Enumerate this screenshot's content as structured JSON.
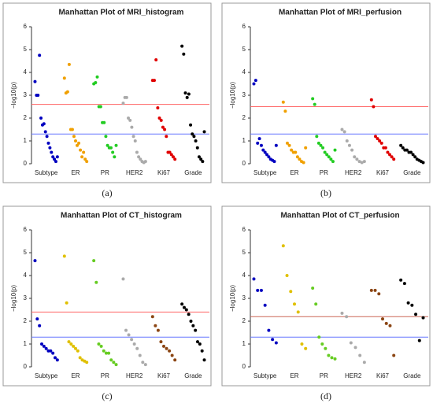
{
  "chart_data": [
    {
      "type": "manhattan",
      "title": "Manhattan Plot of MRI_histogram",
      "ylabel": "−log10(p)",
      "caption": "(a)",
      "ylim": [
        0,
        6
      ],
      "yticks": [
        0,
        1,
        2,
        3,
        4,
        5,
        6
      ],
      "hlines": [
        {
          "value": 2.6,
          "color": "#ff6666"
        },
        {
          "value": 1.3,
          "color": "#6677ff"
        }
      ],
      "groups": [
        {
          "label": "Subtype",
          "color": "#0000c0",
          "values": [
            3.6,
            3.0,
            3.0,
            4.75,
            2.0,
            1.7,
            1.75,
            1.4,
            1.2,
            0.9,
            0.7,
            0.5,
            0.3,
            0.2,
            0.1,
            0.3
          ]
        },
        {
          "label": "ER",
          "color": "#f0a000",
          "values": [
            3.75,
            3.1,
            3.15,
            4.35,
            1.5,
            1.5,
            1.2,
            1.0,
            0.8,
            0.9,
            0.6,
            0.3,
            0.5,
            0.2,
            0.1
          ]
        },
        {
          "label": "PR",
          "color": "#22cc22",
          "values": [
            3.5,
            3.55,
            3.8,
            2.5,
            2.5,
            1.8,
            1.8,
            1.2,
            0.8,
            0.7,
            0.7,
            0.5,
            0.3,
            0.8
          ]
        },
        {
          "label": "HER2",
          "color": "#aaaaaa",
          "values": [
            2.65,
            2.9,
            2.9,
            2.0,
            1.9,
            1.6,
            1.2,
            1.0,
            0.5,
            0.3,
            0.2,
            0.1,
            0.05,
            0.1
          ]
        },
        {
          "label": "Ki67",
          "color": "#e00000",
          "values": [
            3.65,
            3.65,
            4.55,
            2.45,
            2.0,
            1.9,
            1.6,
            1.5,
            1.2,
            0.5,
            0.5,
            0.4,
            0.3,
            0.2
          ]
        },
        {
          "label": "Grade",
          "color": "#000000",
          "values": [
            5.15,
            4.8,
            3.1,
            2.9,
            3.05,
            1.7,
            1.3,
            1.2,
            1.0,
            0.7,
            0.3,
            0.2,
            0.1,
            1.4
          ]
        }
      ]
    },
    {
      "type": "manhattan",
      "title": "Manhattan Plot of MRI_perfusion",
      "ylabel": "−log10(p)",
      "caption": "(b)",
      "ylim": [
        0,
        6
      ],
      "yticks": [
        0,
        1,
        2,
        3,
        4,
        5,
        6
      ],
      "hlines": [
        {
          "value": 2.5,
          "color": "#ff6666"
        },
        {
          "value": 1.3,
          "color": "#6677ff"
        }
      ],
      "groups": [
        {
          "label": "Subtype",
          "color": "#0000c0",
          "values": [
            3.5,
            3.65,
            0.9,
            1.1,
            0.8,
            0.6,
            0.5,
            0.4,
            0.3,
            0.2,
            0.15,
            0.1,
            0.8
          ]
        },
        {
          "label": "ER",
          "color": "#f0a000",
          "values": [
            2.7,
            2.3,
            0.9,
            0.8,
            0.6,
            0.5,
            0.5,
            0.3,
            0.2,
            0.1,
            0.05,
            0.7
          ]
        },
        {
          "label": "PR",
          "color": "#22cc22",
          "values": [
            2.85,
            2.6,
            1.2,
            0.9,
            0.8,
            0.7,
            0.5,
            0.4,
            0.3,
            0.2,
            0.1,
            0.6
          ]
        },
        {
          "label": "HER2",
          "color": "#aaaaaa",
          "values": [
            1.5,
            1.4,
            1.0,
            0.8,
            0.6,
            0.3,
            0.2,
            0.1,
            0.05,
            0.1
          ]
        },
        {
          "label": "Ki67",
          "color": "#e00000",
          "values": [
            2.8,
            2.5,
            1.2,
            1.1,
            1.0,
            0.9,
            0.7,
            0.7,
            0.5,
            0.4,
            0.3,
            0.2
          ]
        },
        {
          "label": "Grade",
          "color": "#000000",
          "values": [
            0.8,
            0.7,
            0.6,
            0.6,
            0.5,
            0.5,
            0.4,
            0.3,
            0.2,
            0.15,
            0.1,
            0.05
          ]
        }
      ]
    },
    {
      "type": "manhattan",
      "title": "Manhattan Plot of CT_histogram",
      "ylabel": "−log10(p)",
      "caption": "(c)",
      "ylim": [
        0,
        6
      ],
      "yticks": [
        0,
        1,
        2,
        3,
        4,
        5,
        6
      ],
      "hlines": [
        {
          "value": 2.4,
          "color": "#ff6666"
        },
        {
          "value": 1.3,
          "color": "#6677ff"
        }
      ],
      "groups": [
        {
          "label": "Subtype",
          "color": "#0000c0",
          "values": [
            4.65,
            2.1,
            1.8,
            1.0,
            0.9,
            0.8,
            0.7,
            0.7,
            0.6,
            0.4,
            0.3
          ]
        },
        {
          "label": "ER",
          "color": "#e0c000",
          "values": [
            4.85,
            2.8,
            1.1,
            1.0,
            0.9,
            0.8,
            0.7,
            0.4,
            0.3,
            0.25,
            0.2
          ]
        },
        {
          "label": "PR",
          "color": "#66cc22",
          "values": [
            4.65,
            3.7,
            1.0,
            0.9,
            0.7,
            0.6,
            0.6,
            0.3,
            0.2,
            0.1
          ]
        },
        {
          "label": "HER2",
          "color": "#aaaaaa",
          "values": [
            3.85,
            1.6,
            1.4,
            1.2,
            1.0,
            0.8,
            0.5,
            0.2,
            0.1
          ]
        },
        {
          "label": "Ki67",
          "color": "#8b4513",
          "values": [
            2.2,
            1.8,
            1.6,
            1.1,
            0.9,
            0.8,
            0.7,
            0.5,
            0.3
          ]
        },
        {
          "label": "Grade",
          "color": "#000000",
          "values": [
            2.75,
            2.6,
            2.5,
            2.3,
            2.0,
            1.8,
            1.6,
            1.1,
            1.0,
            0.7,
            0.3
          ]
        }
      ]
    },
    {
      "type": "manhattan",
      "title": "Manhattan Plot of CT_perfusion",
      "ylabel": "−log10(p)",
      "caption": "(d)",
      "ylim": [
        0,
        6
      ],
      "yticks": [
        0,
        1,
        2,
        3,
        4,
        5,
        6
      ],
      "hlines": [
        {
          "value": 2.2,
          "color": "#cc6655"
        },
        {
          "value": 1.3,
          "color": "#6677ff"
        }
      ],
      "groups": [
        {
          "label": "Subtype",
          "color": "#0000c0",
          "values": [
            3.85,
            3.35,
            3.35,
            2.7,
            1.6,
            1.2,
            1.05
          ]
        },
        {
          "label": "ER",
          "color": "#e0c000",
          "values": [
            5.3,
            4.0,
            3.3,
            2.75,
            2.4,
            1.0,
            0.8
          ]
        },
        {
          "label": "PR",
          "color": "#66cc22",
          "values": [
            3.45,
            2.75,
            1.3,
            1.0,
            0.8,
            0.5,
            0.4,
            0.35
          ]
        },
        {
          "label": "HER2",
          "color": "#aaaaaa",
          "values": [
            2.35,
            2.2,
            1.05,
            0.85,
            0.5,
            0.2
          ]
        },
        {
          "label": "Ki67",
          "color": "#8b4513",
          "values": [
            3.35,
            3.35,
            3.2,
            2.1,
            1.9,
            1.8,
            0.5
          ]
        },
        {
          "label": "Grade",
          "color": "#000000",
          "values": [
            3.8,
            3.65,
            2.8,
            2.7,
            2.3,
            1.15,
            2.15
          ]
        }
      ]
    }
  ]
}
